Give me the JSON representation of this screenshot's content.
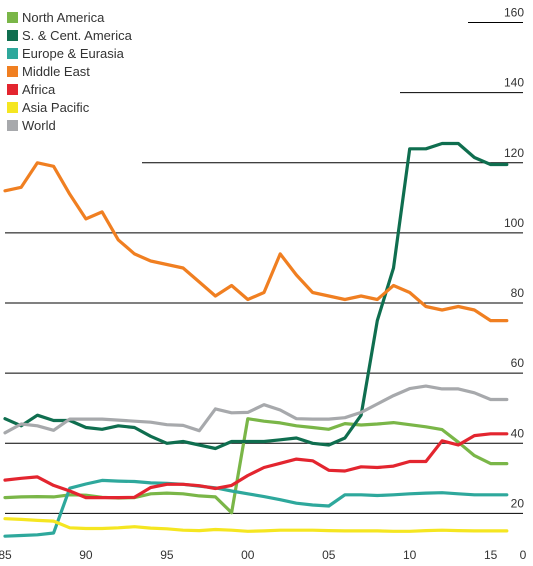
{
  "chart_data": {
    "type": "line",
    "title": "",
    "xlabel": "",
    "ylabel": "",
    "x": [
      1985,
      1986,
      1987,
      1988,
      1989,
      1990,
      1991,
      1992,
      1993,
      1994,
      1995,
      1996,
      1997,
      1998,
      1999,
      2000,
      2001,
      2002,
      2003,
      2004,
      2005,
      2006,
      2007,
      2008,
      2009,
      2010,
      2011,
      2012,
      2013,
      2014,
      2015,
      2016
    ],
    "xlim": [
      1985,
      2017
    ],
    "ylim": [
      5,
      165
    ],
    "y_ticks": [
      {
        "value": 20,
        "label": "20"
      },
      {
        "value": 40,
        "label": "40"
      },
      {
        "value": 60,
        "label": "60"
      },
      {
        "value": 80,
        "label": "80"
      },
      {
        "value": 100,
        "label": "100"
      },
      {
        "value": 120,
        "label": "120"
      },
      {
        "value": 140,
        "label": "140"
      },
      {
        "value": 160,
        "label": "160"
      }
    ],
    "x_ticks": [
      {
        "value": 1985,
        "label": "85"
      },
      {
        "value": 1990,
        "label": "90"
      },
      {
        "value": 1995,
        "label": "95"
      },
      {
        "value": 2000,
        "label": "00"
      },
      {
        "value": 2005,
        "label": "05"
      },
      {
        "value": 2010,
        "label": "10"
      },
      {
        "value": 2015,
        "label": "15"
      },
      {
        "value": 2017,
        "label": "0"
      }
    ],
    "grid": "horizontal",
    "legend_position": "top-left",
    "series": [
      {
        "name": "North America",
        "color": "#7ab648",
        "values": [
          24.5,
          24.7,
          24.8,
          24.7,
          25.3,
          25.2,
          24.6,
          24.4,
          24.5,
          25.6,
          25.8,
          25.6,
          25.0,
          24.7,
          20.2,
          47.0,
          46.3,
          45.8,
          45.0,
          44.5,
          44.0,
          45.6,
          45.2,
          45.5,
          45.9,
          45.3,
          44.7,
          43.9,
          40.3,
          36.5,
          34.2,
          34.2
        ]
      },
      {
        "name": "S. & Cent. America",
        "color": "#0f6e4f",
        "values": [
          47,
          45,
          48,
          46.5,
          46.5,
          44.5,
          44,
          45,
          44.5,
          42,
          40,
          40.5,
          39.5,
          38.5,
          40.5,
          40.5,
          40.5,
          41,
          41.5,
          40,
          39.5,
          41.5,
          48,
          75,
          90,
          124,
          124,
          125.5,
          125.5,
          121.5,
          119.5,
          119.5
        ]
      },
      {
        "name": "Europe & Eurasia",
        "color": "#2ea89c",
        "values": [
          13.5,
          13.7,
          13.9,
          14.4,
          27.2,
          28.4,
          29.4,
          29.2,
          29.1,
          28.7,
          28.6,
          28.3,
          27.8,
          27.3,
          26.4,
          25.6,
          24.8,
          23.9,
          22.9,
          22.4,
          22.1,
          25.3,
          25.3,
          25.1,
          25.3,
          25.6,
          25.8,
          25.9,
          25.6,
          25.3,
          25.3,
          25.3
        ]
      },
      {
        "name": "Middle East",
        "color": "#f07f21",
        "values": [
          112,
          113,
          120,
          119,
          111,
          104,
          106,
          98,
          94,
          92,
          91,
          90,
          86,
          82,
          85,
          81,
          83,
          94,
          88,
          83,
          82,
          81,
          82,
          81,
          85,
          83,
          79,
          78,
          79,
          78,
          75,
          75
        ]
      },
      {
        "name": "Africa",
        "color": "#e3252f",
        "values": [
          29.5,
          30.0,
          30.4,
          28.0,
          26.4,
          24.5,
          24.5,
          24.5,
          24.6,
          27.4,
          28.3,
          28.3,
          27.9,
          27.1,
          28.0,
          30.8,
          33.1,
          34.3,
          35.5,
          35.0,
          32.3,
          32.1,
          33.3,
          33.1,
          33.5,
          34.8,
          34.8,
          40.7,
          39.5,
          42.2,
          42.7,
          42.7
        ]
      },
      {
        "name": "Asia Pacific",
        "color": "#f5e621",
        "values": [
          18.5,
          18.3,
          18.0,
          17.8,
          15.9,
          15.7,
          15.7,
          15.9,
          16.2,
          15.8,
          15.6,
          15.2,
          15.1,
          15.4,
          15.2,
          14.9,
          15.0,
          15.2,
          15.2,
          15.2,
          15.1,
          15.0,
          15.0,
          15.0,
          14.9,
          14.9,
          15.1,
          15.2,
          15.1,
          15.0,
          15.0,
          15.0
        ]
      },
      {
        "name": "World",
        "color": "#a7a9ac",
        "values": [
          43.0,
          45.5,
          45.0,
          43.7,
          46.9,
          46.9,
          46.9,
          46.6,
          46.3,
          46.0,
          45.3,
          45.1,
          43.6,
          49.8,
          48.7,
          48.8,
          51.0,
          49.5,
          47.0,
          46.9,
          46.9,
          47.3,
          48.8,
          51.2,
          53.6,
          55.6,
          56.3,
          55.5,
          55.5,
          54.4,
          52.5,
          52.5
        ]
      }
    ]
  }
}
